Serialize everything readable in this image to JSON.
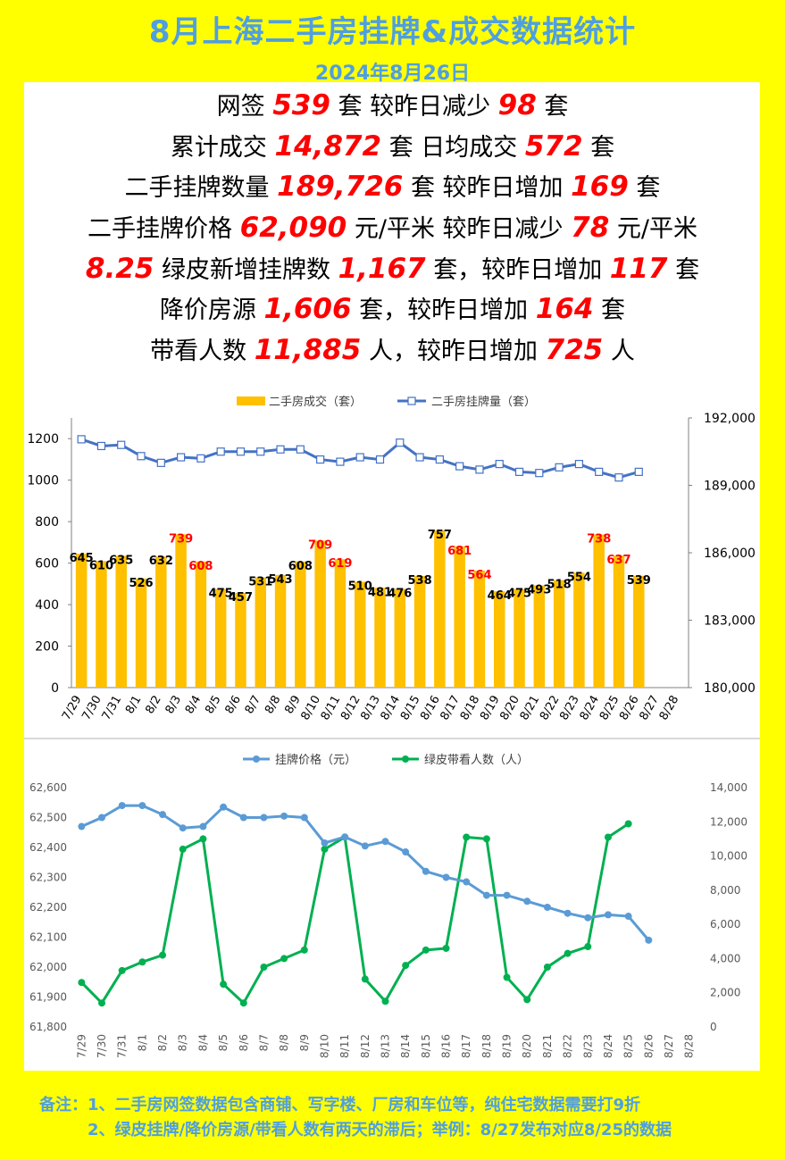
{
  "header": {
    "title": "8月上海二手房挂牌&成交数据统计",
    "date": "2024年8月26日"
  },
  "stats": [
    {
      "p1": "网签 ",
      "n1": "539",
      "p2": " 套 较昨日减少 ",
      "n2": "98",
      "p3": " 套"
    },
    {
      "p1": "累计成交 ",
      "n1": "14,872",
      "p2": " 套 日均成交 ",
      "n2": "572",
      "p3": " 套"
    },
    {
      "p1": "二手挂牌数量 ",
      "n1": "189,726",
      "p2": " 套 较昨日增加 ",
      "n2": "169",
      "p3": " 套"
    },
    {
      "p1": "二手挂牌价格 ",
      "n1": "62,090",
      "p2": " 元/平米 较昨日减少 ",
      "n2": "78",
      "p3": " 元/平米"
    },
    {
      "p1": "",
      "n1": "8.25",
      "p2": " 绿皮新增挂牌数 ",
      "n2": "1,167",
      "p3": " 套，较昨日增加 ",
      "n3": "117",
      "p4": " 套"
    },
    {
      "p1": "降价房源 ",
      "n1": "1,606",
      "p2": " 套，较昨日增加 ",
      "n2": "164",
      "p3": " 套"
    },
    {
      "p1": "带看人数 ",
      "n1": "11,885",
      "p2": " 人，较昨日增加 ",
      "n2": "725",
      "p3": " 人"
    }
  ],
  "chart_data": [
    {
      "type": "bar",
      "categories": [
        "7/29",
        "7/30",
        "7/31",
        "8/1",
        "8/2",
        "8/3",
        "8/4",
        "8/5",
        "8/6",
        "8/7",
        "8/8",
        "8/9",
        "8/10",
        "8/11",
        "8/12",
        "8/13",
        "8/14",
        "8/15",
        "8/16",
        "8/17",
        "8/18",
        "8/19",
        "8/20",
        "8/21",
        "8/22",
        "8/23",
        "8/24",
        "8/25",
        "8/26",
        "8/27",
        "8/28"
      ],
      "series": [
        {
          "name": "二手房成交（套）",
          "type": "bar",
          "axis": "left",
          "color": "#ffc000",
          "values": [
            645,
            610,
            635,
            526,
            632,
            739,
            608,
            475,
            457,
            531,
            543,
            608,
            709,
            619,
            510,
            481,
            476,
            538,
            757,
            681,
            564,
            464,
            475,
            493,
            518,
            554,
            738,
            637,
            539,
            null,
            null
          ],
          "label_colors": [
            "#000000",
            "#000000",
            "#000000",
            "#000000",
            "#000000",
            "#ff0000",
            "#ff0000",
            "#000000",
            "#000000",
            "#000000",
            "#000000",
            "#000000",
            "#ff0000",
            "#ff0000",
            "#000000",
            "#000000",
            "#000000",
            "#000000",
            "#000000",
            "#ff0000",
            "#ff0000",
            "#000000",
            "#000000",
            "#000000",
            "#000000",
            "#000000",
            "#ff0000",
            "#ff0000",
            "#000000"
          ]
        },
        {
          "name": "二手房挂牌量（套）",
          "type": "line",
          "axis": "right",
          "color": "#4472c4",
          "values": [
            191050,
            190750,
            190800,
            190300,
            190000,
            190250,
            190200,
            190500,
            190500,
            190500,
            190600,
            190600,
            190150,
            190050,
            190250,
            190150,
            190900,
            190250,
            190150,
            189850,
            189700,
            189950,
            189600,
            189550,
            189800,
            189950,
            189600,
            189350,
            189600,
            null,
            null
          ]
        }
      ],
      "ylim_left": [
        0,
        1300
      ],
      "yticks_left": [
        0,
        200,
        400,
        600,
        800,
        1000,
        1200
      ],
      "ylim_right": [
        180000,
        192000
      ],
      "yticks_right": [
        "180,000",
        "183,000",
        "186,000",
        "189,000",
        "192,000"
      ],
      "legend_position": "top"
    },
    {
      "type": "line",
      "categories": [
        "7/29",
        "7/30",
        "7/31",
        "8/1",
        "8/2",
        "8/3",
        "8/4",
        "8/5",
        "8/6",
        "8/7",
        "8/8",
        "8/9",
        "8/10",
        "8/11",
        "8/12",
        "8/13",
        "8/14",
        "8/15",
        "8/16",
        "8/17",
        "8/18",
        "8/19",
        "8/20",
        "8/21",
        "8/22",
        "8/23",
        "8/24",
        "8/25",
        "8/26",
        "8/27",
        "8/28"
      ],
      "series": [
        {
          "name": "挂牌价格（元）",
          "axis": "left",
          "color": "#5b9bd5",
          "values": [
            62470,
            62500,
            62540,
            62540,
            62510,
            62465,
            62470,
            62535,
            62500,
            62500,
            62505,
            62500,
            62415,
            62435,
            62405,
            62420,
            62385,
            62320,
            62300,
            62285,
            62240,
            62240,
            62220,
            62200,
            62180,
            62165,
            62175,
            62170,
            62090,
            null,
            null
          ]
        },
        {
          "name": "绿皮带看人数（人）",
          "axis": "right",
          "color": "#00b050",
          "values": [
            2600,
            1400,
            3300,
            3800,
            4200,
            10400,
            11000,
            2500,
            1400,
            3500,
            4000,
            4500,
            10400,
            11100,
            2800,
            1500,
            3600,
            4500,
            4600,
            11100,
            11000,
            2900,
            1600,
            3500,
            4300,
            4700,
            11100,
            11885,
            null,
            null,
            null
          ]
        }
      ],
      "ylim_left": [
        61800,
        62600
      ],
      "yticks_left": [
        "61,800",
        "61,900",
        "62,000",
        "62,100",
        "62,200",
        "62,300",
        "62,400",
        "62,500",
        "62,600"
      ],
      "ylim_right": [
        0,
        14000
      ],
      "yticks_right": [
        "0",
        "2,000",
        "4,000",
        "6,000",
        "8,000",
        "10,000",
        "12,000",
        "14,000"
      ],
      "legend_position": "top"
    }
  ],
  "notes": {
    "line1": "备注：1、二手房网签数据包含商铺、写字楼、厂房和车位等，纯住宅数据需要打9折",
    "line2": "2、绿皮挂牌/降价房源/带看人数有两天的滞后；举例：8/27发布对应8/25的数据"
  }
}
